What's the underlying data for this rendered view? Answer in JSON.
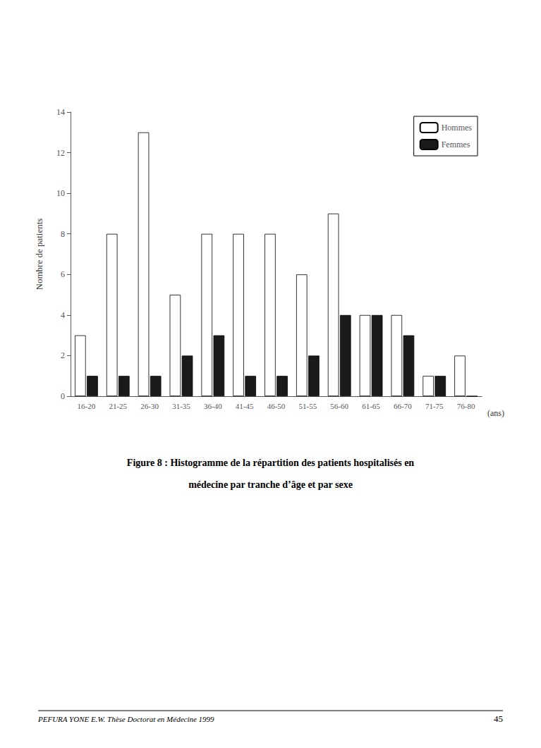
{
  "chart_data": {
    "type": "bar",
    "title": "Figure 8 : Histogramme de la répartition des patients hospitalisés en",
    "subtitle": "médecine par tranche d’âge et par sexe",
    "ylabel": "Nombre de patients",
    "xlabel": "(ans)",
    "categories": [
      "16-20",
      "21-25",
      "26-30",
      "31-35",
      "36-40",
      "41-45",
      "46-50",
      "51-55",
      "56-60",
      "61-65",
      "66-70",
      "71-75",
      "76-80"
    ],
    "series": [
      {
        "name": "Hommes",
        "color": "#ffffff",
        "values": [
          3,
          8,
          13,
          5,
          8,
          8,
          8,
          6,
          9,
          4,
          4,
          1,
          2
        ]
      },
      {
        "name": "Femmes",
        "color": "#1a1a1a",
        "values": [
          1,
          1,
          1,
          2,
          3,
          1,
          1,
          2,
          4,
          4,
          3,
          1,
          0
        ]
      }
    ],
    "ylim": [
      0,
      14
    ],
    "yticks": [
      0,
      2,
      4,
      6,
      8,
      10,
      12,
      14
    ],
    "grid": false,
    "legend": "upper right",
    "annotations": [
      "PEFURA YONE E.W. Thèse Doctorat en Médecine 1999",
      "45"
    ]
  }
}
